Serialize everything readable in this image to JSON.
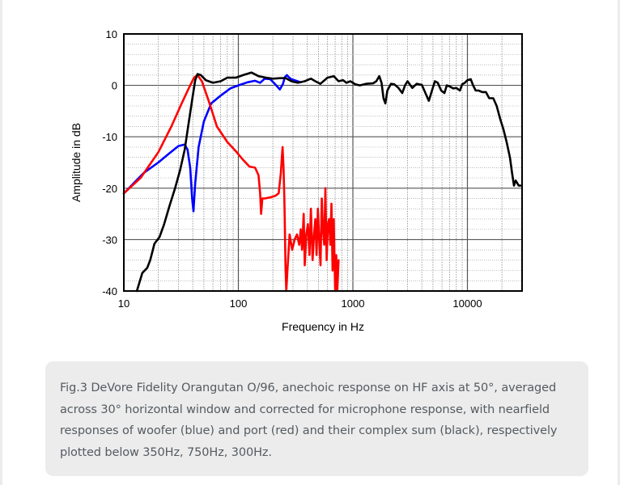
{
  "chart_data": {
    "type": "line",
    "title": "",
    "xlabel": "Frequency in Hz",
    "ylabel": "Amplitude in dB",
    "xscale": "log",
    "xlim": [
      10,
      30000
    ],
    "ylim": [
      -40,
      10
    ],
    "xticks": [
      10,
      100,
      1000,
      10000
    ],
    "xtick_labels": [
      "10",
      "100",
      "1000",
      "10000"
    ],
    "yticks": [
      10,
      0,
      -10,
      -20,
      -30,
      -40
    ],
    "ytick_labels": [
      "10",
      "0",
      "-10",
      "-20",
      "-30",
      "-40"
    ],
    "grid": true,
    "series": [
      {
        "name": "woofer",
        "color": "#0000ff",
        "points": [
          [
            10,
            -21
          ],
          [
            15,
            -17
          ],
          [
            20,
            -15
          ],
          [
            25,
            -13.2
          ],
          [
            30,
            -11.8
          ],
          [
            34,
            -11.5
          ],
          [
            36,
            -12.5
          ],
          [
            38,
            -16
          ],
          [
            39.5,
            -22
          ],
          [
            40.5,
            -24.5
          ],
          [
            42,
            -19
          ],
          [
            45,
            -12
          ],
          [
            50,
            -7
          ],
          [
            58,
            -3.5
          ],
          [
            70,
            -2
          ],
          [
            85,
            -0.6
          ],
          [
            100,
            0
          ],
          [
            120,
            0.6
          ],
          [
            140,
            0.9
          ],
          [
            155,
            0.5
          ],
          [
            170,
            1.3
          ],
          [
            190,
            1.2
          ],
          [
            210,
            0.2
          ],
          [
            230,
            -0.8
          ],
          [
            245,
            0.3
          ],
          [
            255,
            1.6
          ],
          [
            265,
            2.0
          ],
          [
            275,
            1.6
          ],
          [
            290,
            1.2
          ],
          [
            310,
            1.0
          ],
          [
            350,
            0.6
          ]
        ]
      },
      {
        "name": "port",
        "color": "#ff0000",
        "points": [
          [
            10,
            -21
          ],
          [
            14,
            -18
          ],
          [
            20,
            -13
          ],
          [
            26,
            -8
          ],
          [
            32,
            -3.5
          ],
          [
            37,
            -0.5
          ],
          [
            41,
            1.5
          ],
          [
            44,
            2.0
          ],
          [
            48,
            0.8
          ],
          [
            55,
            -3
          ],
          [
            65,
            -8
          ],
          [
            80,
            -11
          ],
          [
            95,
            -12.8
          ],
          [
            110,
            -14.5
          ],
          [
            125,
            -15.8
          ],
          [
            140,
            -16
          ],
          [
            150,
            -17.5
          ],
          [
            155,
            -21
          ],
          [
            158,
            -25
          ],
          [
            162,
            -22
          ],
          [
            170,
            -22
          ],
          [
            190,
            -21.8
          ],
          [
            210,
            -21.5
          ],
          [
            225,
            -21
          ],
          [
            235,
            -17
          ],
          [
            243,
            -12
          ],
          [
            248,
            -16
          ],
          [
            252,
            -22
          ],
          [
            255,
            -28
          ],
          [
            258,
            -35
          ],
          [
            262,
            -40
          ],
          [
            268,
            -36
          ],
          [
            280,
            -29
          ],
          [
            295,
            -32
          ],
          [
            310,
            -30
          ],
          [
            325,
            -29
          ],
          [
            340,
            -31
          ],
          [
            350,
            -28
          ],
          [
            360,
            -32
          ],
          [
            372,
            -25
          ],
          [
            380,
            -35
          ],
          [
            392,
            -29
          ],
          [
            405,
            -27
          ],
          [
            418,
            -33
          ],
          [
            430,
            -24
          ],
          [
            445,
            -34
          ],
          [
            458,
            -29
          ],
          [
            470,
            -26
          ],
          [
            482,
            -33
          ],
          [
            495,
            -24
          ],
          [
            508,
            -30
          ],
          [
            522,
            -35
          ],
          [
            535,
            -22
          ],
          [
            548,
            -28
          ],
          [
            562,
            -31
          ],
          [
            575,
            -20
          ],
          [
            590,
            -34
          ],
          [
            605,
            -27
          ],
          [
            620,
            -26
          ],
          [
            635,
            -31
          ],
          [
            650,
            -23
          ],
          [
            665,
            -36
          ],
          [
            680,
            -26
          ],
          [
            700,
            -40
          ],
          [
            715,
            -33
          ],
          [
            730,
            -40
          ],
          [
            750,
            -34
          ]
        ]
      },
      {
        "name": "sum",
        "color": "#000000",
        "points": [
          [
            13,
            -40
          ],
          [
            14.5,
            -36.5
          ],
          [
            16,
            -35.5
          ],
          [
            17,
            -34
          ],
          [
            18.5,
            -30.8
          ],
          [
            20.5,
            -29.5
          ],
          [
            22.5,
            -27
          ],
          [
            25,
            -23.5
          ],
          [
            28,
            -20
          ],
          [
            31,
            -16.5
          ],
          [
            34,
            -12.5
          ],
          [
            37,
            -7
          ],
          [
            40,
            -2
          ],
          [
            42,
            1.0
          ],
          [
            44,
            2.2
          ],
          [
            47,
            2.0
          ],
          [
            52,
            1.0
          ],
          [
            60,
            0.5
          ],
          [
            70,
            0.8
          ],
          [
            80,
            1.5
          ],
          [
            95,
            1.5
          ],
          [
            110,
            2.0
          ],
          [
            130,
            2.5
          ],
          [
            150,
            1.8
          ],
          [
            175,
            1.5
          ],
          [
            200,
            1.3
          ],
          [
            230,
            1.4
          ],
          [
            260,
            1.4
          ],
          [
            290,
            0.8
          ],
          [
            330,
            0.5
          ],
          [
            380,
            0.8
          ],
          [
            430,
            1.3
          ],
          [
            470,
            0.8
          ],
          [
            520,
            0.3
          ],
          [
            600,
            1.5
          ],
          [
            680,
            1.8
          ],
          [
            750,
            0.8
          ],
          [
            820,
            1.0
          ],
          [
            880,
            0.5
          ],
          [
            950,
            0.8
          ],
          [
            1000,
            0.5
          ],
          [
            1050,
            0.2
          ],
          [
            1150,
            0
          ],
          [
            1300,
            0.3
          ],
          [
            1500,
            0.4
          ],
          [
            1600,
            0.8
          ],
          [
            1700,
            1.8
          ],
          [
            1780,
            0.5
          ],
          [
            1850,
            -2.5
          ],
          [
            1920,
            -3.5
          ],
          [
            2000,
            -1
          ],
          [
            2150,
            0.3
          ],
          [
            2300,
            0.2
          ],
          [
            2500,
            -0.5
          ],
          [
            2700,
            -1.5
          ],
          [
            2850,
            0
          ],
          [
            3000,
            0.8
          ],
          [
            3300,
            -0.5
          ],
          [
            3600,
            0.3
          ],
          [
            4000,
            0.1
          ],
          [
            4300,
            -1.5
          ],
          [
            4600,
            -3.0
          ],
          [
            4900,
            -1
          ],
          [
            5200,
            0.8
          ],
          [
            5500,
            0.5
          ],
          [
            5900,
            -1
          ],
          [
            6300,
            -1.5
          ],
          [
            6600,
            0
          ],
          [
            7000,
            -0.2
          ],
          [
            7500,
            -0.6
          ],
          [
            8000,
            -0.5
          ],
          [
            8600,
            -1
          ],
          [
            9000,
            0.2
          ],
          [
            9500,
            0.5
          ],
          [
            10000,
            1.0
          ],
          [
            10700,
            1.2
          ],
          [
            11200,
            0
          ],
          [
            11800,
            -1
          ],
          [
            12500,
            -1.0
          ],
          [
            13500,
            -1.3
          ],
          [
            14500,
            -1.3
          ],
          [
            15500,
            -2.5
          ],
          [
            16800,
            -2.5
          ],
          [
            18000,
            -4
          ],
          [
            19300,
            -6.5
          ],
          [
            20600,
            -8.5
          ],
          [
            22000,
            -11
          ],
          [
            23500,
            -14
          ],
          [
            24500,
            -17
          ],
          [
            25500,
            -19.5
          ],
          [
            26400,
            -18.5
          ],
          [
            27200,
            -19
          ],
          [
            28000,
            -19.5
          ],
          [
            29000,
            -19.5
          ]
        ]
      }
    ]
  },
  "caption": "Fig.3 DeVore Fidelity Orangutan O/96, anechoic response on HF axis at 50°, averaged across 30° horizontal window and corrected for microphone response, with nearfield responses of woofer (blue) and port (red) and their complex sum (black), respectively plotted below 350Hz, 750Hz, 300Hz."
}
